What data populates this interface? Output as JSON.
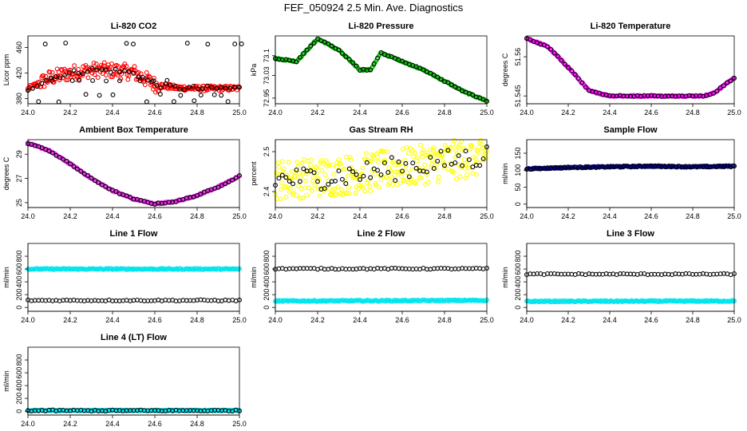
{
  "figure": {
    "title": "FEF_050924  2.5 Min. Ave. Diagnostics"
  },
  "chart_data": [
    {
      "type": "scatter",
      "title": "Li-820 CO2",
      "ylabel": "Licor ppm",
      "xlim": [
        24.0,
        25.0
      ],
      "ylim": [
        372,
        478
      ],
      "yticks": [
        380,
        420,
        460
      ],
      "series": [
        {
          "color": "#ff0000",
          "gen": "co2",
          "points": [
            [
              24.0,
              395
            ],
            [
              24.1,
              412
            ],
            [
              24.2,
              420
            ],
            [
              24.3,
              425
            ],
            [
              24.4,
              424
            ],
            [
              24.5,
              421
            ],
            [
              24.6,
              402
            ],
            [
              24.7,
              397
            ],
            [
              24.8,
              396
            ],
            [
              24.9,
              396
            ],
            [
              25.0,
              396
            ]
          ]
        },
        {
          "color": "#000000",
          "gen": "co2_black",
          "points": [
            [
              24.0,
              395
            ],
            [
              24.1,
              412
            ],
            [
              24.2,
              420
            ],
            [
              24.3,
              425
            ],
            [
              24.4,
              424
            ],
            [
              24.5,
              421
            ],
            [
              24.6,
              402
            ],
            [
              24.7,
              397
            ],
            [
              24.8,
              396
            ],
            [
              24.9,
              396
            ],
            [
              25.0,
              396
            ]
          ]
        }
      ]
    },
    {
      "type": "scatter",
      "title": "Li-820 Pressure",
      "ylabel": "kPa",
      "xlim": [
        24.0,
        25.0
      ],
      "ylim": [
        72.93,
        73.17
      ],
      "yticks": [
        72.95,
        73.03,
        73.1
      ],
      "series": [
        {
          "color": "#00bb00",
          "gen": "trend",
          "points": [
            [
              24.0,
              73.09
            ],
            [
              24.1,
              73.08
            ],
            [
              24.2,
              73.16
            ],
            [
              24.3,
              73.12
            ],
            [
              24.4,
              73.05
            ],
            [
              24.45,
              73.05
            ],
            [
              24.5,
              73.11
            ],
            [
              24.6,
              73.08
            ],
            [
              24.7,
              73.05
            ],
            [
              24.8,
              73.01
            ],
            [
              24.9,
              72.97
            ],
            [
              25.0,
              72.94
            ]
          ]
        },
        {
          "color": "#000000",
          "gen": "trend",
          "points": [
            [
              24.0,
              73.09
            ],
            [
              24.1,
              73.08
            ],
            [
              24.2,
              73.16
            ],
            [
              24.3,
              73.12
            ],
            [
              24.4,
              73.05
            ],
            [
              24.45,
              73.05
            ],
            [
              24.5,
              73.11
            ],
            [
              24.6,
              73.08
            ],
            [
              24.7,
              73.05
            ],
            [
              24.8,
              73.01
            ],
            [
              24.9,
              72.97
            ],
            [
              25.0,
              72.94
            ]
          ]
        }
      ]
    },
    {
      "type": "scatter",
      "title": "Li-820 Temperature",
      "ylabel": "degrees C",
      "xlim": [
        24.0,
        25.0
      ],
      "ylim": [
        51.542,
        51.568
      ],
      "yticks": [
        51.545,
        51.56
      ],
      "series": [
        {
          "color": "#ff00ff",
          "gen": "trend",
          "points": [
            [
              24.0,
              51.567
            ],
            [
              24.1,
              51.564
            ],
            [
              24.2,
              51.556
            ],
            [
              24.3,
              51.547
            ],
            [
              24.4,
              51.545
            ],
            [
              24.6,
              51.545
            ],
            [
              24.85,
              51.545
            ],
            [
              24.9,
              51.546
            ],
            [
              25.0,
              51.552
            ]
          ]
        },
        {
          "color": "#000000",
          "gen": "trend",
          "points": [
            [
              24.0,
              51.567
            ],
            [
              24.1,
              51.564
            ],
            [
              24.2,
              51.556
            ],
            [
              24.3,
              51.547
            ],
            [
              24.4,
              51.545
            ],
            [
              24.6,
              51.545
            ],
            [
              24.85,
              51.545
            ],
            [
              24.9,
              51.546
            ],
            [
              25.0,
              51.552
            ]
          ]
        }
      ]
    },
    {
      "type": "scatter",
      "title": "Ambient Box Temperature",
      "ylabel": "degrees C",
      "xlim": [
        24.0,
        25.0
      ],
      "ylim": [
        24.6,
        30.2
      ],
      "yticks": [
        25,
        27,
        29
      ],
      "series": [
        {
          "color": "#ee22ee",
          "gen": "trend",
          "points": [
            [
              24.0,
              29.9
            ],
            [
              24.1,
              29.3
            ],
            [
              24.2,
              28.2
            ],
            [
              24.3,
              27.0
            ],
            [
              24.4,
              26.0
            ],
            [
              24.5,
              25.3
            ],
            [
              24.6,
              24.9
            ],
            [
              24.7,
              25.1
            ],
            [
              24.8,
              25.6
            ],
            [
              24.9,
              26.3
            ],
            [
              25.0,
              27.2
            ]
          ]
        },
        {
          "color": "#000000",
          "gen": "trend",
          "points": [
            [
              24.0,
              29.9
            ],
            [
              24.1,
              29.3
            ],
            [
              24.2,
              28.2
            ],
            [
              24.3,
              27.0
            ],
            [
              24.4,
              26.0
            ],
            [
              24.5,
              25.3
            ],
            [
              24.6,
              24.9
            ],
            [
              24.7,
              25.1
            ],
            [
              24.8,
              25.6
            ],
            [
              24.9,
              26.3
            ],
            [
              25.0,
              27.2
            ]
          ]
        }
      ]
    },
    {
      "type": "scatter",
      "title": "Gas Stream RH",
      "ylabel": "percent",
      "xlim": [
        24.0,
        25.0
      ],
      "ylim": [
        2.36,
        2.53
      ],
      "yticks": [
        2.4,
        2.5
      ],
      "series": [
        {
          "color": "#ffff00",
          "gen": "rh",
          "points": [
            [
              24.0,
              2.43
            ],
            [
              24.2,
              2.435
            ],
            [
              24.4,
              2.445
            ],
            [
              24.6,
              2.46
            ],
            [
              24.8,
              2.475
            ],
            [
              25.0,
              2.49
            ]
          ]
        },
        {
          "color": "#000000",
          "gen": "rh_black",
          "points": [
            [
              24.0,
              2.43
            ],
            [
              24.2,
              2.435
            ],
            [
              24.4,
              2.445
            ],
            [
              24.6,
              2.46
            ],
            [
              24.8,
              2.475
            ],
            [
              25.0,
              2.49
            ]
          ]
        }
      ]
    },
    {
      "type": "scatter",
      "title": "Sample Flow",
      "ylabel": "ml/min",
      "xlim": [
        24.0,
        25.0
      ],
      "ylim": [
        -10,
        190
      ],
      "yticks": [
        0,
        50,
        100,
        150
      ],
      "series": [
        {
          "color": "#000080",
          "gen": "trend",
          "points": [
            [
              24.0,
              104
            ],
            [
              24.2,
              108
            ],
            [
              24.4,
              110
            ],
            [
              24.6,
              112
            ],
            [
              24.8,
              110
            ],
            [
              25.0,
              112
            ]
          ]
        },
        {
          "color": "#000000",
          "gen": "trend",
          "points": [
            [
              24.0,
              104
            ],
            [
              24.2,
              108
            ],
            [
              24.4,
              110
            ],
            [
              24.6,
              112
            ],
            [
              24.8,
              110
            ],
            [
              25.0,
              112
            ]
          ]
        }
      ]
    },
    {
      "type": "scatter",
      "title": "Line 1 Flow",
      "ylabel": "ml/min",
      "xlim": [
        24.0,
        25.0
      ],
      "ylim": [
        -60,
        1000
      ],
      "yticks": [
        0,
        200,
        400,
        600,
        800
      ],
      "series": [
        {
          "color": "#00e5ee",
          "gen": "trend",
          "points": [
            [
              24.0,
              600
            ],
            [
              25.0,
              600
            ]
          ]
        },
        {
          "color": "#000000",
          "gen": "trend",
          "points": [
            [
              24.0,
              110
            ],
            [
              25.0,
              110
            ]
          ]
        }
      ]
    },
    {
      "type": "scatter",
      "title": "Line 2 Flow",
      "ylabel": "ml/min",
      "xlim": [
        24.0,
        25.0
      ],
      "ylim": [
        -60,
        1000
      ],
      "yticks": [
        0,
        200,
        400,
        600,
        800
      ],
      "series": [
        {
          "color": "#00e5ee",
          "gen": "trend",
          "points": [
            [
              24.0,
              100
            ],
            [
              25.0,
              110
            ]
          ]
        },
        {
          "color": "#000000",
          "gen": "trend",
          "points": [
            [
              24.0,
              605
            ],
            [
              25.0,
              605
            ]
          ]
        }
      ]
    },
    {
      "type": "scatter",
      "title": "Line 3 Flow",
      "ylabel": "ml/min",
      "xlim": [
        24.0,
        25.0
      ],
      "ylim": [
        -60,
        1000
      ],
      "yticks": [
        0,
        200,
        400,
        600,
        800
      ],
      "series": [
        {
          "color": "#00e5ee",
          "gen": "trend",
          "points": [
            [
              24.0,
              95
            ],
            [
              25.0,
              100
            ]
          ]
        },
        {
          "color": "#000000",
          "gen": "trend",
          "points": [
            [
              24.0,
              520
            ],
            [
              25.0,
              520
            ]
          ]
        }
      ]
    },
    {
      "type": "scatter",
      "title": "Line 4 (LT) Flow",
      "ylabel": "ml/min",
      "xlim": [
        24.0,
        25.0
      ],
      "ylim": [
        -60,
        1000
      ],
      "yticks": [
        0,
        200,
        400,
        600,
        800
      ],
      "series": [
        {
          "color": "#00e5ee",
          "gen": "trend",
          "points": [
            [
              24.0,
              10
            ],
            [
              25.0,
              10
            ]
          ]
        },
        {
          "color": "#000000",
          "gen": "trend",
          "points": [
            [
              24.0,
              10
            ],
            [
              25.0,
              10
            ]
          ]
        }
      ]
    }
  ]
}
